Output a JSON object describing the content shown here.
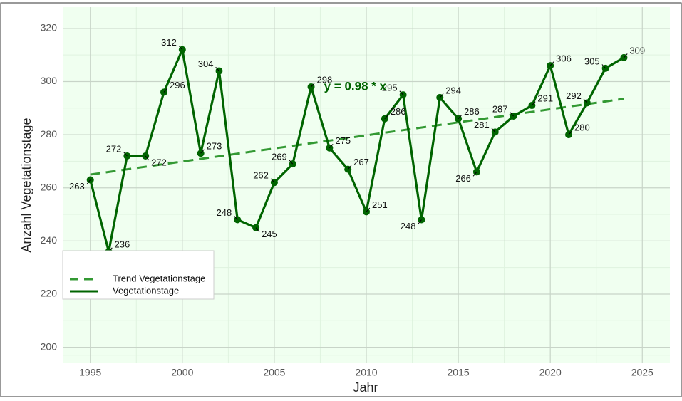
{
  "chart_data": {
    "type": "line",
    "x_label": "Jahr",
    "y_label": "Anzahl Vegetationstage",
    "annotation": "y = 0.98 * x",
    "annotation_color": "#006400",
    "x": [
      1995,
      1996,
      1997,
      1998,
      1999,
      2000,
      2001,
      2002,
      2003,
      2004,
      2005,
      2006,
      2007,
      2008,
      2009,
      2010,
      2011,
      2012,
      2013,
      2014,
      2015,
      2016,
      2017,
      2018,
      2019,
      2020,
      2021,
      2022,
      2023,
      2024
    ],
    "series": [
      {
        "name": "Trend Vegetationstage",
        "color": "#339933",
        "dashed": true,
        "x": [
          1995,
          2024
        ],
        "values": [
          265,
          293.5
        ]
      },
      {
        "name": "Vegetationstage",
        "color": "#006400",
        "markers": true,
        "data_labels": true,
        "values": [
          263,
          236,
          272,
          272,
          296,
          312,
          273,
          304,
          248,
          245,
          262,
          269,
          298,
          275,
          267,
          251,
          286,
          295,
          248,
          294,
          286,
          266,
          281,
          287,
          291,
          306,
          280,
          292,
          305,
          309
        ]
      }
    ],
    "xlim": [
      1993.5,
      2026.5
    ],
    "ylim": [
      194,
      328
    ],
    "xticks": [
      1995,
      2000,
      2005,
      2010,
      2015,
      2020,
      2025
    ],
    "yticks": [
      200,
      220,
      240,
      260,
      280,
      300,
      320
    ],
    "grid": true,
    "legend": "bottom-left",
    "background": "#f0fff0"
  }
}
